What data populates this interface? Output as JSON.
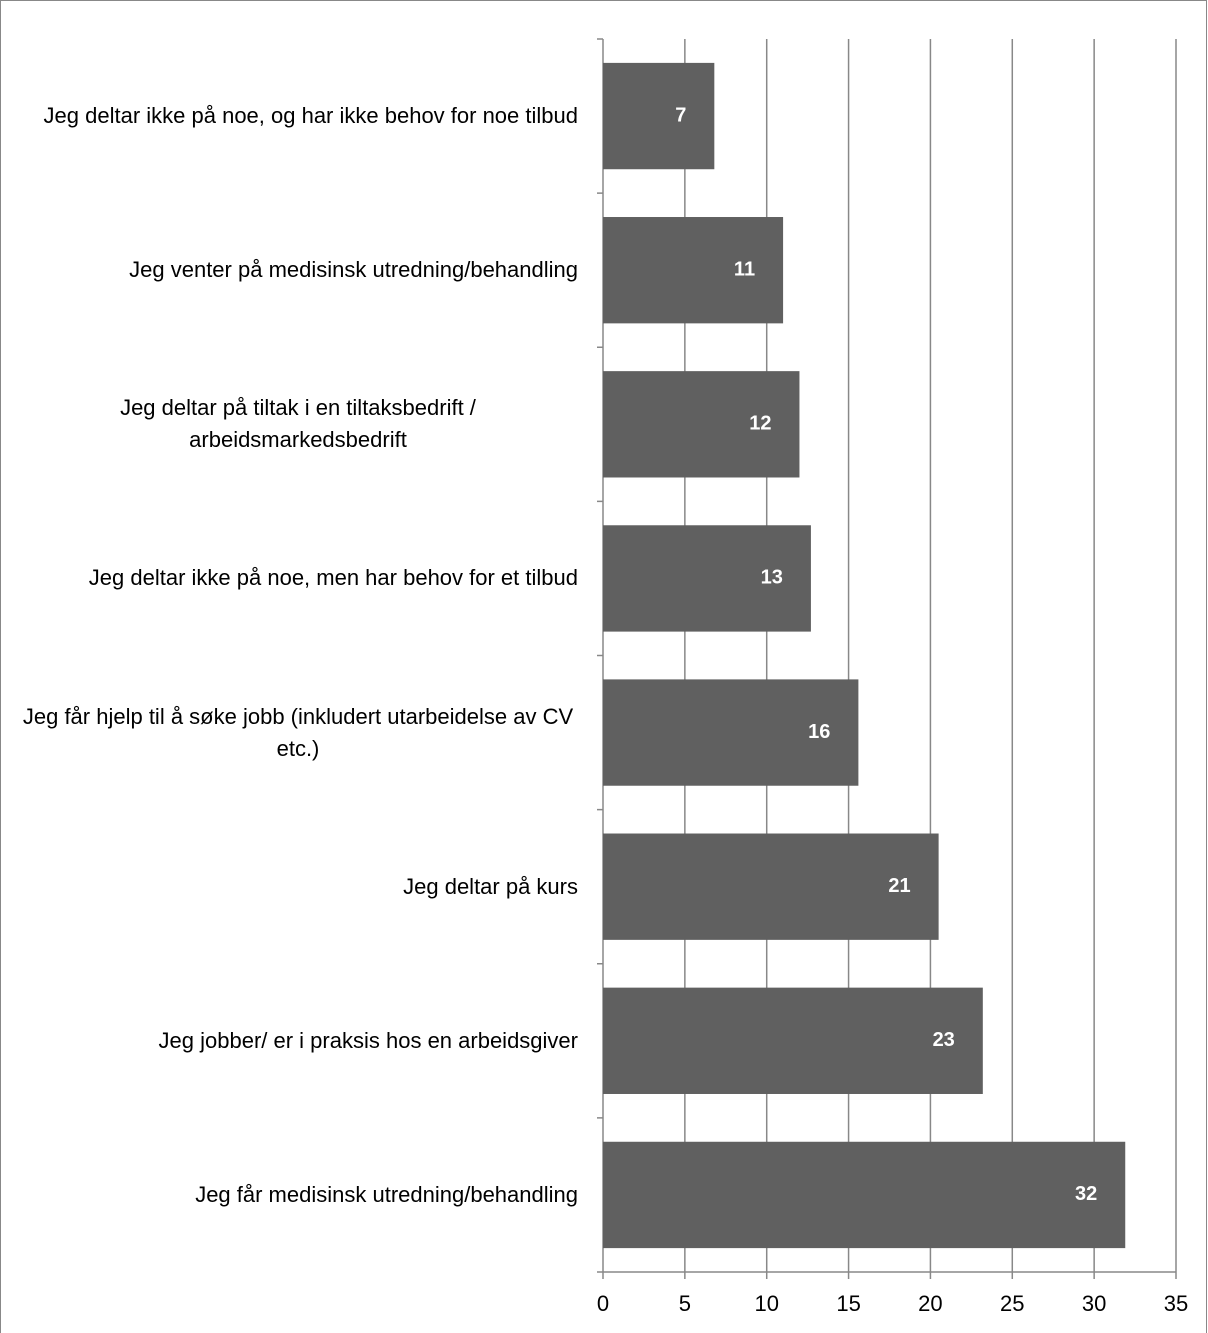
{
  "chart_data": {
    "type": "bar",
    "orientation": "horizontal",
    "categories": [
      "Jeg deltar ikke på noe, og har ikke behov for noe tilbud",
      "Jeg venter på medisinsk utredning/behandling",
      "Jeg deltar på tiltak i en tiltaksbedrift / arbeidsmarkedsbedrift",
      "Jeg deltar ikke på noe, men har behov for et tilbud",
      "Jeg får hjelp til å søke jobb (inkludert utarbeidelse av CV etc.)",
      "Jeg deltar på kurs",
      "Jeg jobber/ er i praksis hos en arbeidsgiver",
      "Jeg får medisinsk utredning/behandling"
    ],
    "values": [
      6.8,
      11.0,
      12.0,
      12.7,
      15.6,
      20.5,
      23.2,
      31.9
    ],
    "value_labels": [
      "7",
      "11",
      "12",
      "13",
      "16",
      "21",
      "23",
      "32"
    ],
    "color": "#606060",
    "xlim": [
      0,
      35
    ],
    "xticks": [
      0,
      5,
      10,
      15,
      20,
      25,
      30,
      35
    ],
    "grid": true
  }
}
